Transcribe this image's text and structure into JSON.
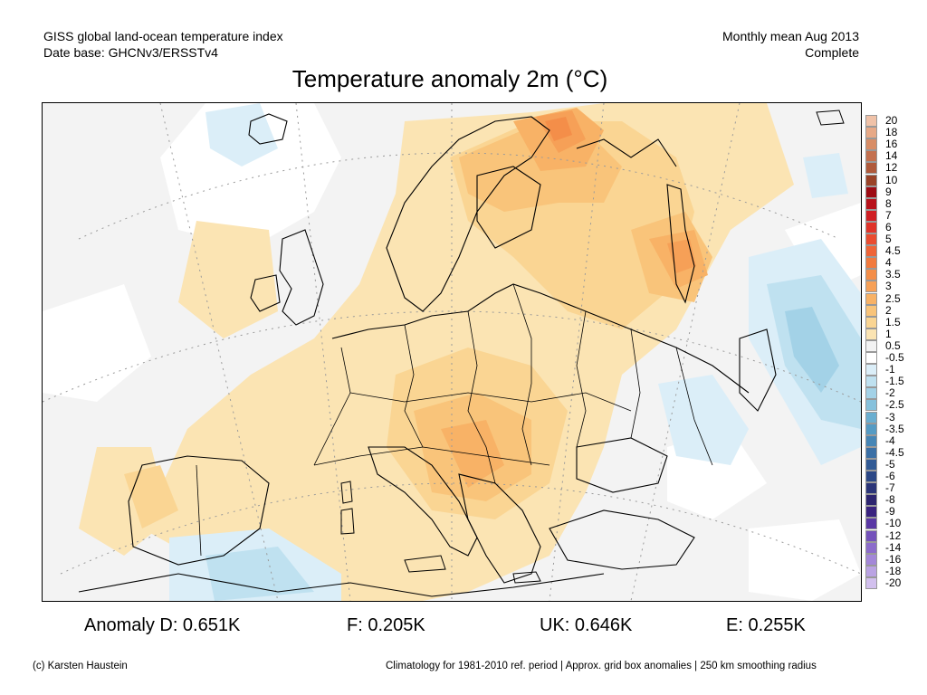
{
  "header": {
    "left_line1": "GISS global land-ocean temperature index",
    "left_line2": "Date base: GHCNv3/ERSSTv4",
    "right_line1": "Monthly mean Aug 2013",
    "right_line2": "Complete"
  },
  "title": "Temperature anomaly 2m (°C)",
  "legend": {
    "levels": [
      {
        "label": "20",
        "color": "#f0c2a8"
      },
      {
        "label": "18",
        "color": "#e7a987"
      },
      {
        "label": "16",
        "color": "#d88d66"
      },
      {
        "label": "14",
        "color": "#c47150"
      },
      {
        "label": "12",
        "color": "#b05a3b"
      },
      {
        "label": "10",
        "color": "#9a4328"
      },
      {
        "label": "9",
        "color": "#9e0b14"
      },
      {
        "label": "8",
        "color": "#b8121b"
      },
      {
        "label": "7",
        "color": "#d01f24"
      },
      {
        "label": "6",
        "color": "#e0342a"
      },
      {
        "label": "5",
        "color": "#ea4c30"
      },
      {
        "label": "4.5",
        "color": "#ef6437"
      },
      {
        "label": "4",
        "color": "#f27a3e"
      },
      {
        "label": "3.5",
        "color": "#f48e49"
      },
      {
        "label": "3",
        "color": "#f6a057"
      },
      {
        "label": "2.5",
        "color": "#f8b266"
      },
      {
        "label": "2",
        "color": "#f9c47a"
      },
      {
        "label": "1.5",
        "color": "#fad593"
      },
      {
        "label": "1",
        "color": "#fbe4b3"
      },
      {
        "label": "0.5",
        "color": "#f3f3f3"
      },
      {
        "label": "-0.5",
        "color": "#ffffff"
      },
      {
        "label": "-1",
        "color": "#dbeef8"
      },
      {
        "label": "-1.5",
        "color": "#bfe1f0"
      },
      {
        "label": "-2",
        "color": "#a3d2e7"
      },
      {
        "label": "-2.5",
        "color": "#86c1dc"
      },
      {
        "label": "-3",
        "color": "#6aaed0"
      },
      {
        "label": "-3.5",
        "color": "#559bc4"
      },
      {
        "label": "-4",
        "color": "#4686b6"
      },
      {
        "label": "-4.5",
        "color": "#3b70a6"
      },
      {
        "label": "-5",
        "color": "#325b96"
      },
      {
        "label": "-6",
        "color": "#2c4887"
      },
      {
        "label": "-7",
        "color": "#2b3579"
      },
      {
        "label": "-8",
        "color": "#2d2570"
      },
      {
        "label": "-9",
        "color": "#3a2380"
      },
      {
        "label": "-10",
        "color": "#5a38a5"
      },
      {
        "label": "-12",
        "color": "#7452bb"
      },
      {
        "label": "-14",
        "color": "#8c6ccb"
      },
      {
        "label": "-16",
        "color": "#a387d8"
      },
      {
        "label": "-18",
        "color": "#baa3e3"
      },
      {
        "label": "-20",
        "color": "#d2c0ee"
      }
    ]
  },
  "anomalies": {
    "D": "Anomaly D: 0.651K",
    "F": "F: 0.205K",
    "UK": "UK: 0.646K",
    "E": "E: 0.255K"
  },
  "footer": {
    "credit": "(c) Karsten Haustein",
    "note": "Climatology for 1981-2010 ref. period | Approx. grid box anomalies | 250 km smoothing radius"
  },
  "map_colors": {
    "background": "#f3f3f3",
    "white": "#ffffff",
    "warm1": "#fbe4b3",
    "warm2": "#fad593",
    "warm3": "#f9c47a",
    "warm4": "#f8b266",
    "warm5": "#f6a057",
    "warm6": "#f48e49",
    "cool1": "#dbeef8",
    "cool2": "#bfe1f0",
    "cool3": "#a3d2e7",
    "cool4": "#86c1dc"
  }
}
